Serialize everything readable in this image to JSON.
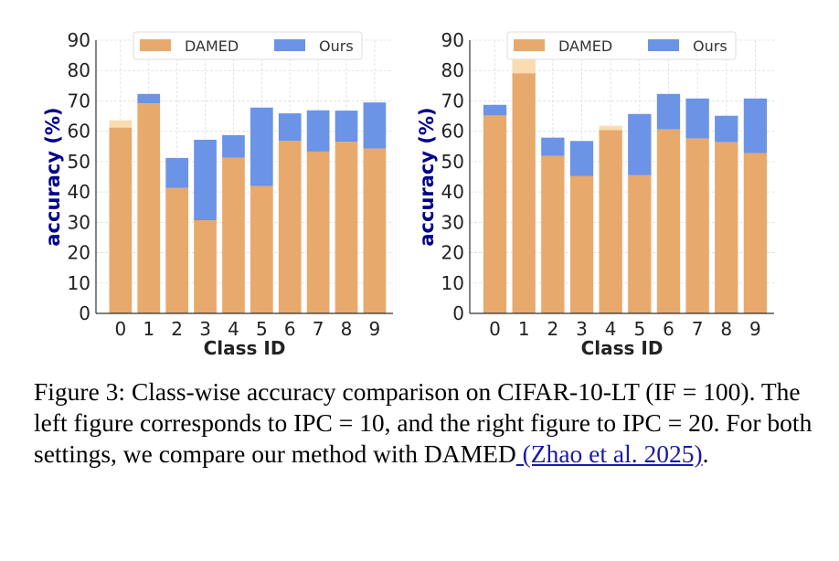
{
  "chart_data": [
    {
      "type": "bar",
      "title": "",
      "xlabel": "Class ID",
      "ylabel": "accuracy (%)",
      "categories": [
        "0",
        "1",
        "2",
        "3",
        "4",
        "5",
        "6",
        "7",
        "8",
        "9"
      ],
      "ylim": [
        0,
        90
      ],
      "yticks": [
        0,
        10,
        20,
        30,
        40,
        50,
        60,
        70,
        80,
        90
      ],
      "grid": true,
      "legend_position": "top-center",
      "series": [
        {
          "name": "DAMED",
          "color": "#e8a96c",
          "values": [
            63.6,
            69.2,
            41.3,
            30.7,
            51.3,
            41.9,
            56.8,
            53.3,
            56.5,
            54.3
          ]
        },
        {
          "name": "Ours",
          "color": "#6b93e6",
          "values": [
            61.2,
            72.3,
            51.2,
            57.2,
            58.7,
            67.8,
            65.9,
            66.9,
            66.8,
            69.5
          ]
        }
      ]
    },
    {
      "type": "bar",
      "title": "",
      "xlabel": "Class ID",
      "ylabel": "accuracy (%)",
      "categories": [
        "0",
        "1",
        "2",
        "3",
        "4",
        "5",
        "6",
        "7",
        "8",
        "9"
      ],
      "ylim": [
        0,
        90
      ],
      "yticks": [
        0,
        10,
        20,
        30,
        40,
        50,
        60,
        70,
        80,
        90
      ],
      "grid": true,
      "legend_position": "top-center",
      "series": [
        {
          "name": "DAMED",
          "color": "#e8a96c",
          "values": [
            65.2,
            84.4,
            51.9,
            45.3,
            61.8,
            45.5,
            60.6,
            57.6,
            56.4,
            52.8
          ]
        },
        {
          "name": "Ours",
          "color": "#6b93e6",
          "values": [
            68.7,
            79.1,
            57.9,
            56.8,
            60.4,
            65.7,
            72.3,
            70.8,
            65.1,
            70.8
          ]
        }
      ]
    }
  ],
  "caption": {
    "text": "Figure 3: Class-wise accuracy comparison on CIFAR-10-LT (IF = 100). The left figure corresponds to IPC = 10, and the right figure to IPC = 20. For both settings, we compare our method with DAMED",
    "citation": " (Zhao et al. 2025)",
    "end": "."
  },
  "colors": {
    "pale": "#fadcb0",
    "ylabel": "#00008b"
  }
}
